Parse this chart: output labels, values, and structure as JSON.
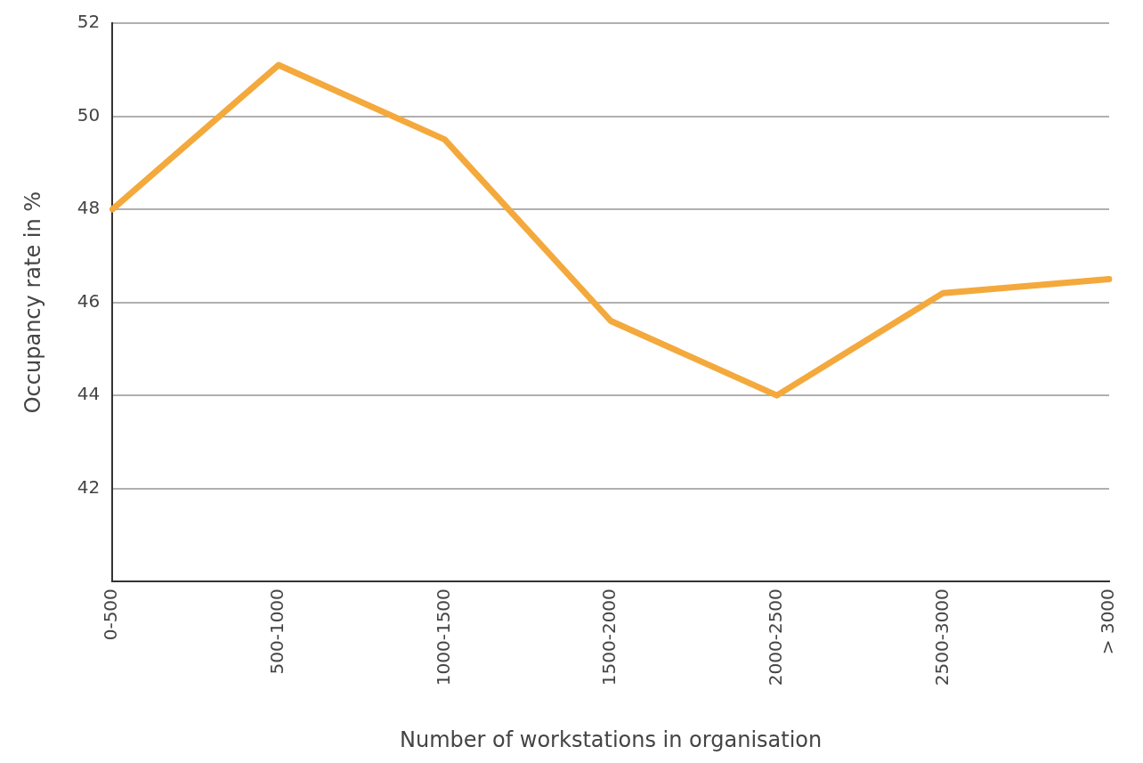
{
  "chart_data": {
    "type": "line",
    "xlabel": "Number of workstations in organisation",
    "ylabel": "Occupancy rate in %",
    "categories": [
      "0-500",
      "500-1000",
      "1000-1500",
      "1500-2000",
      "2000-2500",
      "2500-3000",
      "> 3000"
    ],
    "values": [
      48.0,
      51.1,
      49.5,
      45.6,
      44.0,
      46.2,
      46.5
    ],
    "color": "#f4a93c",
    "ylim": [
      40,
      52
    ],
    "yticks": [
      42,
      44,
      46,
      48,
      50,
      52
    ],
    "grid": "y",
    "legend": false,
    "marker": "none",
    "line_style": "solid"
  }
}
